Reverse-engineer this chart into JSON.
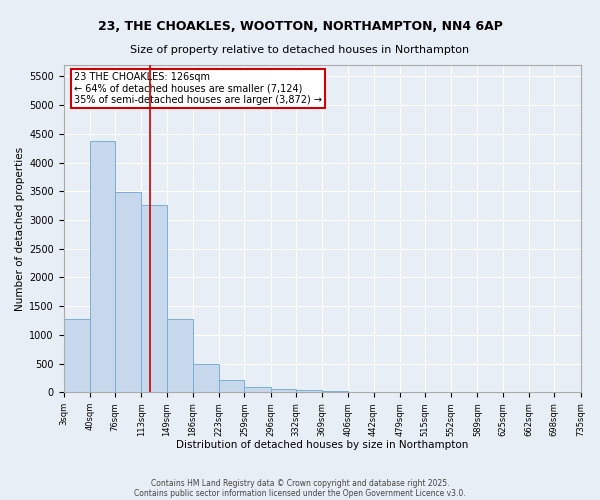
{
  "title1": "23, THE CHOAKLES, WOOTTON, NORTHAMPTON, NN4 6AP",
  "title2": "Size of property relative to detached houses in Northampton",
  "xlabel": "Distribution of detached houses by size in Northampton",
  "ylabel": "Number of detached properties",
  "footer1": "Contains HM Land Registry data © Crown copyright and database right 2025.",
  "footer2": "Contains public sector information licensed under the Open Government Licence v3.0.",
  "annotation_line1": "23 THE CHOAKLES: 126sqm",
  "annotation_line2": "← 64% of detached houses are smaller (7,124)",
  "annotation_line3": "35% of semi-detached houses are larger (3,872) →",
  "property_line_x": 126,
  "bar_color": "#c8d8ec",
  "bar_edge_color": "#7aafd4",
  "bins": [
    3,
    40,
    76,
    113,
    149,
    186,
    223,
    259,
    296,
    332,
    369,
    406,
    442,
    479,
    515,
    552,
    589,
    625,
    662,
    698,
    735
  ],
  "counts": [
    1270,
    4380,
    3480,
    3270,
    1270,
    500,
    215,
    95,
    65,
    45,
    30,
    0,
    0,
    0,
    0,
    0,
    0,
    0,
    0,
    0
  ],
  "ylim": [
    0,
    5700
  ],
  "yticks": [
    0,
    500,
    1000,
    1500,
    2000,
    2500,
    3000,
    3500,
    4000,
    4500,
    5000,
    5500
  ],
  "background_color": "#e8eef5",
  "annotation_box_facecolor": "#ffffff",
  "annotation_box_edgecolor": "#cc0000",
  "vline_color": "#cc0000",
  "grid_color": "#ffffff",
  "title1_fontsize": 9,
  "title2_fontsize": 8,
  "xlabel_fontsize": 7.5,
  "ylabel_fontsize": 7.5,
  "tick_labelsize": 7,
  "xtick_labelsize": 6,
  "footer_fontsize": 5.5,
  "annotation_fontsize": 7
}
